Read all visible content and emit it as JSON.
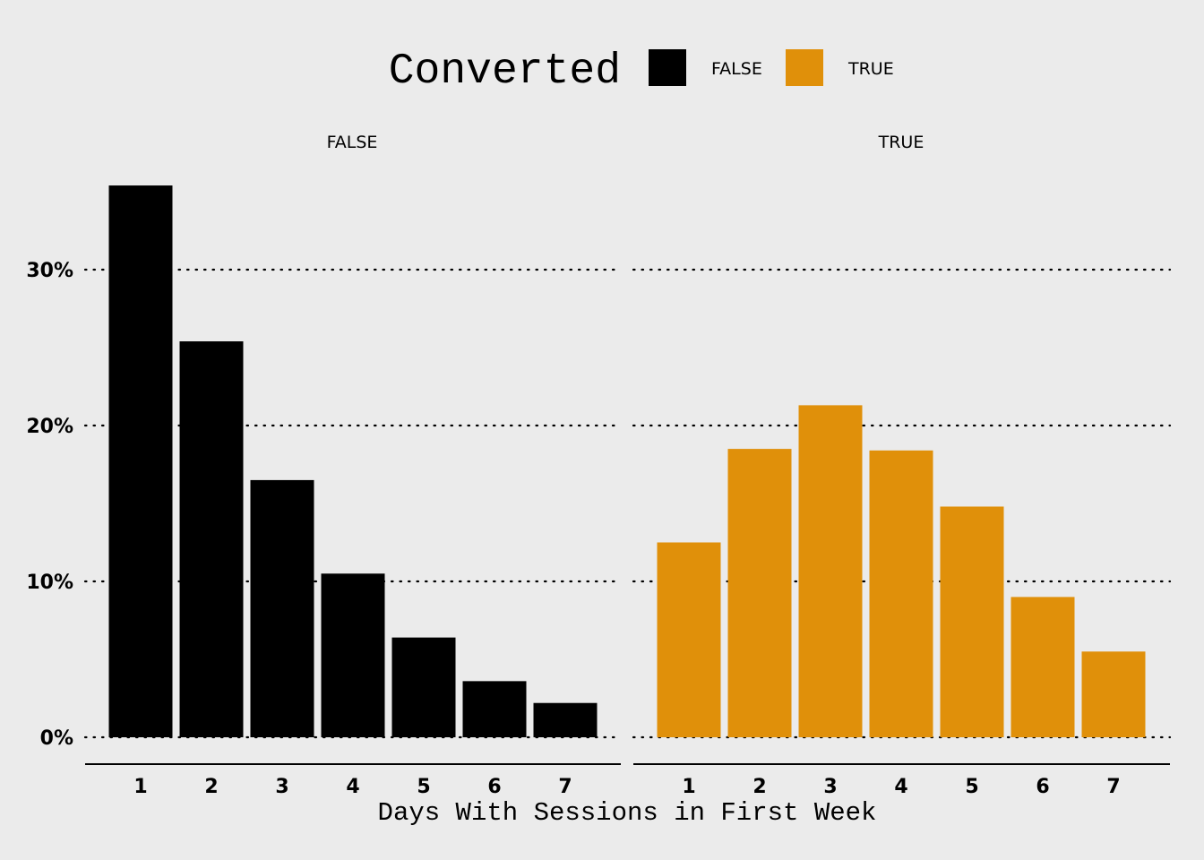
{
  "chart_data": {
    "type": "bar",
    "facet_by": "Converted",
    "legend": {
      "title": "Converted",
      "placement": "top",
      "entries": [
        {
          "label": "FALSE",
          "color": "#000000"
        },
        {
          "label": "TRUE",
          "color": "#e0900a"
        }
      ]
    },
    "categories": [
      "1",
      "2",
      "3",
      "4",
      "5",
      "6",
      "7"
    ],
    "xlabel": "Days With Sessions in First Week",
    "ylabel": "",
    "ylim": [
      0,
      0.36
    ],
    "yticks": [
      0,
      0.1,
      0.2,
      0.3
    ],
    "ytick_labels": [
      "0%",
      "10%",
      "20%",
      "30%"
    ],
    "grid": "horizontal dotted",
    "panels": [
      {
        "strip": "FALSE",
        "color": "#000000",
        "values": [
          0.354,
          0.254,
          0.165,
          0.105,
          0.064,
          0.036,
          0.022
        ]
      },
      {
        "strip": "TRUE",
        "color": "#e0900a",
        "values": [
          0.125,
          0.185,
          0.213,
          0.184,
          0.148,
          0.09,
          0.055
        ]
      }
    ]
  }
}
